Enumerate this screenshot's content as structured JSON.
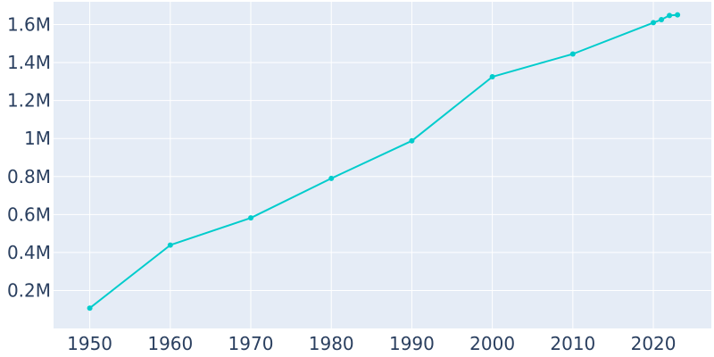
{
  "chart_data": {
    "type": "line",
    "title": "",
    "xlabel": "",
    "ylabel": "",
    "grid": true,
    "line_color": "#00cccc",
    "background_color": "#e5ecf6",
    "grid_color": "#ffffff",
    "xlim": [
      1945.5,
      2027.2
    ],
    "ylim": [
      0.0,
      1.72
    ],
    "x_ticks": [
      1950,
      1960,
      1970,
      1980,
      1990,
      2000,
      2010,
      2020
    ],
    "x_tick_labels": [
      "1950",
      "1960",
      "1970",
      "1980",
      "1990",
      "2000",
      "2010",
      "2020"
    ],
    "y_ticks": [
      0.2,
      0.4,
      0.6,
      0.8,
      1.0,
      1.2,
      1.4,
      1.6
    ],
    "y_tick_labels": [
      "0.2M",
      "0.4M",
      "0.6M",
      "0.8M",
      "1M",
      "1.2M",
      "1.4M",
      "1.6M"
    ],
    "series": [
      {
        "x": [
          1950,
          1960,
          1970,
          1980,
          1990,
          2000,
          2010,
          2020,
          2021,
          2022,
          2023
        ],
        "y": [
          0.107,
          0.439,
          0.582,
          0.79,
          0.988,
          1.325,
          1.445,
          1.61,
          1.626,
          1.648,
          1.651
        ]
      }
    ]
  }
}
